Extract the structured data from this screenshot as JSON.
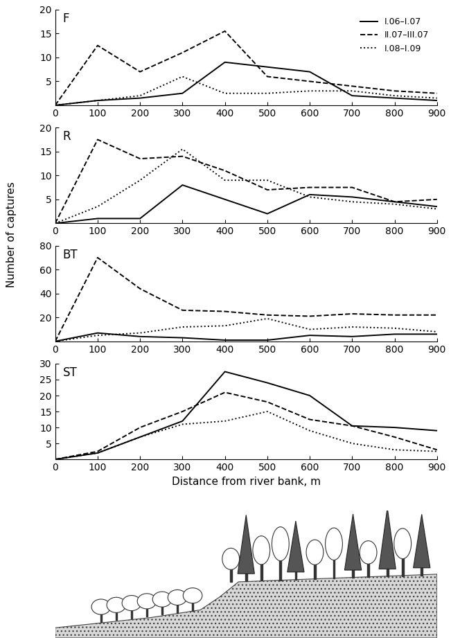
{
  "y_label": "Number of captures",
  "chart_data": [
    {
      "type": "line",
      "title": "F",
      "x": [
        0,
        100,
        200,
        300,
        400,
        500,
        600,
        700,
        800,
        900
      ],
      "xlim": [
        0,
        900
      ],
      "xticks": [
        0,
        100,
        200,
        300,
        400,
        500,
        600,
        700,
        800,
        900
      ],
      "ylim": [
        0,
        20
      ],
      "yticks": [
        5,
        10,
        15,
        20
      ],
      "legend": "upper right",
      "series": [
        {
          "name": "I.06–I.07",
          "color": "#000000",
          "line_style": "solid",
          "values": [
            0,
            1,
            1.5,
            2.5,
            9,
            8,
            7,
            2,
            1.5,
            1
          ]
        },
        {
          "name": "II.07–III.07",
          "color": "#000000",
          "line_style": "dashed",
          "values": [
            0,
            12.5,
            7,
            11,
            15.5,
            6,
            5,
            4,
            3,
            2.5
          ]
        },
        {
          "name": "I.08–I.09",
          "color": "#000000",
          "line_style": "dotted",
          "values": [
            0,
            1,
            2,
            6,
            2.5,
            2.5,
            3,
            3,
            2,
            1.5
          ]
        }
      ]
    },
    {
      "type": "line",
      "title": "R",
      "x": [
        0,
        100,
        200,
        300,
        400,
        500,
        600,
        700,
        800,
        900
      ],
      "xlim": [
        0,
        900
      ],
      "xticks": [
        0,
        100,
        200,
        300,
        400,
        500,
        600,
        700,
        800,
        900
      ],
      "ylim": [
        0,
        20
      ],
      "yticks": [
        5,
        10,
        15,
        20
      ],
      "series": [
        {
          "name": "I.06–I.07",
          "color": "#000000",
          "line_style": "solid",
          "values": [
            0,
            1,
            1,
            8,
            5,
            2,
            6,
            5.5,
            4.5,
            3.5
          ]
        },
        {
          "name": "II.07–III.07",
          "color": "#000000",
          "line_style": "dashed",
          "values": [
            0,
            17.5,
            13.5,
            14,
            11,
            7,
            7.5,
            7.5,
            4.5,
            5
          ]
        },
        {
          "name": "I.08–I.09",
          "color": "#000000",
          "line_style": "dotted",
          "values": [
            0,
            3.5,
            9,
            15.5,
            9,
            9,
            5.5,
            4.5,
            4,
            3
          ]
        }
      ]
    },
    {
      "type": "line",
      "title": "BT",
      "x": [
        0,
        100,
        200,
        300,
        400,
        500,
        600,
        700,
        800,
        900
      ],
      "xlim": [
        0,
        900
      ],
      "xticks": [
        0,
        100,
        200,
        300,
        400,
        500,
        600,
        700,
        800,
        900
      ],
      "ylim": [
        0,
        80
      ],
      "yticks": [
        20,
        40,
        60,
        80
      ],
      "series": [
        {
          "name": "I.06–I.07",
          "color": "#000000",
          "line_style": "solid",
          "values": [
            0,
            7,
            4,
            3,
            1,
            1,
            5,
            4,
            6,
            6
          ]
        },
        {
          "name": "II.07–III.07",
          "color": "#000000",
          "line_style": "dashed",
          "values": [
            0,
            70,
            44,
            26,
            25,
            22,
            21,
            23,
            22,
            22
          ]
        },
        {
          "name": "I.08–I.09",
          "color": "#000000",
          "line_style": "dotted",
          "values": [
            0,
            5,
            7,
            12,
            13,
            19,
            10,
            12,
            11,
            8
          ]
        }
      ]
    },
    {
      "type": "line",
      "title": "ST",
      "x_label": "Distance from river bank, m",
      "x": [
        0,
        100,
        200,
        300,
        400,
        500,
        600,
        700,
        800,
        900
      ],
      "xlim": [
        0,
        900
      ],
      "xticks": [
        0,
        100,
        200,
        300,
        400,
        500,
        600,
        700,
        800,
        900
      ],
      "ylim": [
        0,
        30
      ],
      "yticks": [
        5,
        10,
        15,
        20,
        25,
        30
      ],
      "series": [
        {
          "name": "I.06–I.07",
          "color": "#000000",
          "line_style": "solid",
          "values": [
            0,
            2,
            7,
            12,
            27.5,
            24,
            20,
            10.5,
            10,
            9
          ]
        },
        {
          "name": "II.07–III.07",
          "color": "#000000",
          "line_style": "dashed",
          "values": [
            0,
            2.5,
            10,
            15,
            21,
            18,
            12.5,
            10.5,
            7,
            3
          ]
        },
        {
          "name": "I.08–I.09",
          "color": "#000000",
          "line_style": "dotted",
          "values": [
            0,
            2,
            7,
            11,
            12,
            15,
            9,
            5,
            3,
            2.5
          ]
        }
      ]
    }
  ]
}
